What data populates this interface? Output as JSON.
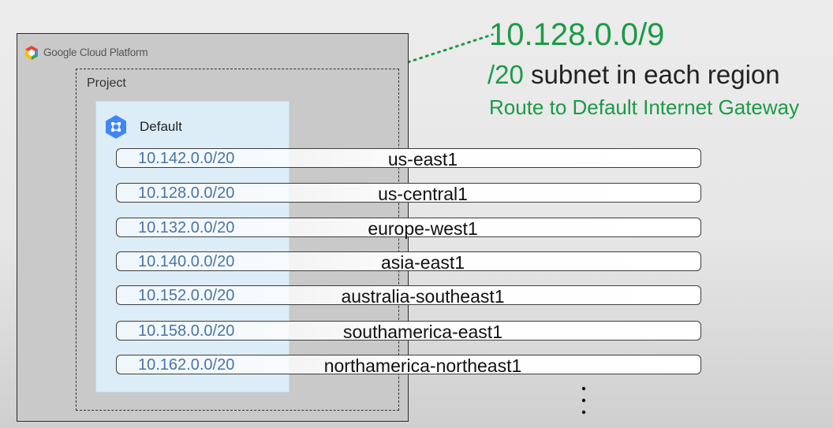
{
  "platform": {
    "name": "Google Cloud Platform"
  },
  "project": {
    "label": "Project"
  },
  "network": {
    "name": "Default"
  },
  "header": {
    "range": "10.128.0.0/9",
    "subnet_prefix": "/20",
    "subnet_text": "subnet in each region",
    "route_text": "Route to Default Internet Gateway"
  },
  "subnets": [
    {
      "cidr": "10.142.0.0/20",
      "region": "us-east1"
    },
    {
      "cidr": "10.128.0.0/20",
      "region": "us-central1"
    },
    {
      "cidr": "10.132.0.0/20",
      "region": "europe-west1"
    },
    {
      "cidr": "10.140.0.0/20",
      "region": "asia-east1"
    },
    {
      "cidr": "10.152.0.0/20",
      "region": "australia-southeast1"
    },
    {
      "cidr": "10.158.0.0/20",
      "region": "southamerica-east1"
    },
    {
      "cidr": "10.162.0.0/20",
      "region": "northamerica-northeast1"
    }
  ],
  "colors": {
    "accent": "#1c9a46",
    "cidr": "#4a74a6",
    "vpc_fill": "#dcedf8"
  }
}
